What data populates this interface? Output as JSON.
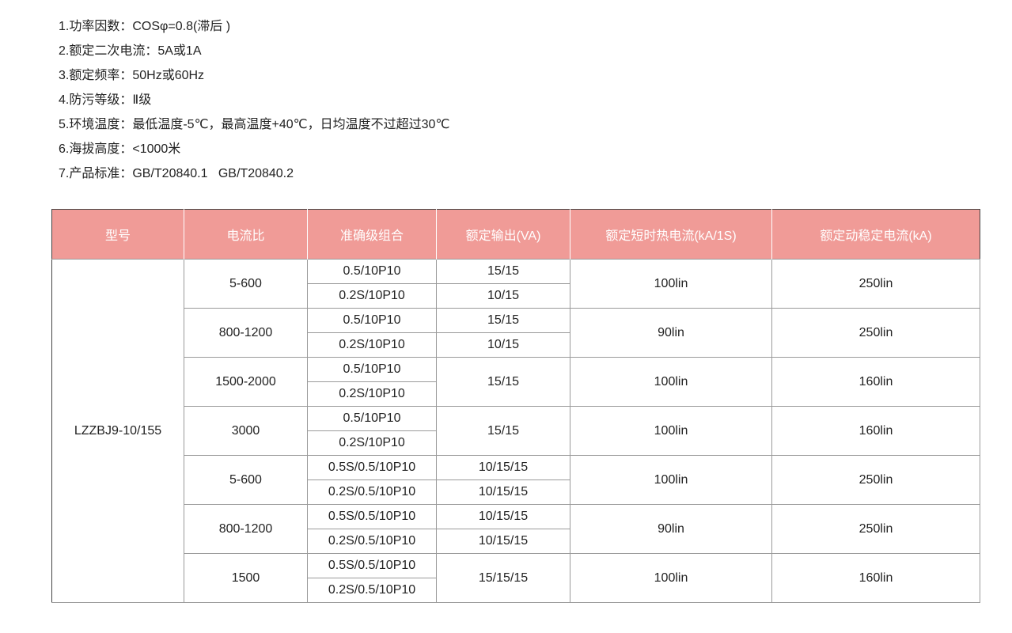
{
  "specs": [
    "1.功率因数：COSφ=0.8(滞后 )",
    "2.额定二次电流：5A或1A",
    "3.额定频率：50Hz或60Hz",
    "4.防污等级：Ⅱ级",
    "5.环境温度：最低温度-5℃，最高温度+40℃，日均温度不过超过30℃",
    "6.海拔高度：<1000米",
    "7.产品标准：GB/T20840.1   GB/T20840.2"
  ],
  "table": {
    "headers": [
      "型号",
      "电流比",
      "准确级组合",
      "额定输出(VA)",
      "额定短时热电流(kA/1S)",
      "额定动稳定电流(kA)"
    ],
    "model": "LZZBJ9-10/155",
    "groups": [
      {
        "ratio": "5-600",
        "acc": [
          "0.5/10P10",
          "0.2S/10P10"
        ],
        "out": [
          "15/15",
          "10/15"
        ],
        "thermal": "100lin",
        "dynamic": "250lin"
      },
      {
        "ratio": "800-1200",
        "acc": [
          "0.5/10P10",
          "0.2S/10P10"
        ],
        "out": [
          "15/15",
          "10/15"
        ],
        "thermal": "90lin",
        "dynamic": "250lin"
      },
      {
        "ratio": "1500-2000",
        "acc": [
          "0.5/10P10",
          "0.2S/10P10"
        ],
        "out": [
          "15/15"
        ],
        "thermal": "100lin",
        "dynamic": "160lin"
      },
      {
        "ratio": "3000",
        "acc": [
          "0.5/10P10",
          "0.2S/10P10"
        ],
        "out": [
          "15/15"
        ],
        "thermal": "100lin",
        "dynamic": "160lin"
      },
      {
        "ratio": "5-600",
        "acc": [
          "0.5S/0.5/10P10",
          "0.2S/0.5/10P10"
        ],
        "out": [
          "10/15/15",
          "10/15/15"
        ],
        "thermal": "100lin",
        "dynamic": "250lin"
      },
      {
        "ratio": "800-1200",
        "acc": [
          "0.5S/0.5/10P10",
          "0.2S/0.5/10P10"
        ],
        "out": [
          "10/15/15",
          "10/15/15"
        ],
        "thermal": "90lin",
        "dynamic": "250lin"
      },
      {
        "ratio": "1500",
        "acc": [
          "0.5S/0.5/10P10",
          "0.2S/0.5/10P10"
        ],
        "out": [
          "15/15/15"
        ],
        "thermal": "100lin",
        "dynamic": "160lin"
      }
    ]
  },
  "colors": {
    "header_bg": "#f09b97",
    "header_text": "#ffffff"
  }
}
